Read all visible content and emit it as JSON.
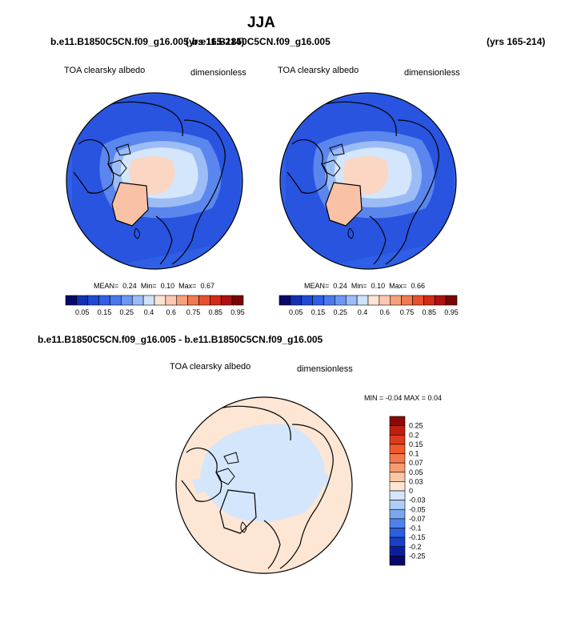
{
  "page": {
    "title": "JJA"
  },
  "panels": [
    {
      "case": "b.e11.B1850C5CN.f09_g16.005",
      "years": "(yrs 165-214)",
      "variable": "TOA clearsky albedo",
      "units": "dimensionless",
      "stats": {
        "mean_label": "MEAN=",
        "mean": "0.24",
        "min_label": "Min=",
        "min": "0.10",
        "max_label": "Max=",
        "max": "0.67"
      }
    },
    {
      "case": "b.e11.B1850C5CN.f09_g16.005",
      "years": "(yrs 165-214)",
      "variable": "TOA clearsky albedo",
      "units": "dimensionless",
      "stats": {
        "mean_label": "MEAN=",
        "mean": "0.24",
        "min_label": "Min=",
        "min": "0.10",
        "max_label": "Max=",
        "max": "0.66"
      }
    }
  ],
  "diff": {
    "title": "b.e11.B1850C5CN.f09_g16.005 - b.e11.B1850C5CN.f09_g16.005",
    "variable": "TOA clearsky albedo",
    "units": "dimensionless",
    "minmax": "MIN = -0.04 MAX =  0.04"
  },
  "colorbar_top": {
    "labels": [
      "0.05",
      "0.15",
      "0.25",
      "0.4",
      "0.6",
      "0.75",
      "0.85",
      "0.95"
    ],
    "colors": [
      "#08086b",
      "#1430b4",
      "#1e4ad8",
      "#2f5fe6",
      "#4a78ee",
      "#6b98f2",
      "#9bbcf6",
      "#cfe3fc",
      "#fde4d4",
      "#fcc8b0",
      "#f8a07c",
      "#f27a52",
      "#e8502e",
      "#d42a18",
      "#b01010",
      "#7a0505"
    ]
  },
  "colorbar_diff": {
    "labels": [
      "0.25",
      "0.2",
      "0.15",
      "0.1",
      "0.07",
      "0.05",
      "0.03",
      "0",
      "-0.03",
      "-0.05",
      "-0.07",
      "-0.1",
      "-0.15",
      "-0.2",
      "-0.25"
    ],
    "colors": [
      "#8b0a05",
      "#c01e10",
      "#de3a1c",
      "#f05a2a",
      "#f5784a",
      "#f89c72",
      "#fbc6a4",
      "#fde6d4",
      "#d4e6fb",
      "#aecdf8",
      "#7aa6f2",
      "#4f82ec",
      "#2c5fe0",
      "#1a3ec4",
      "#0c1f9a",
      "#050a6a"
    ]
  }
}
